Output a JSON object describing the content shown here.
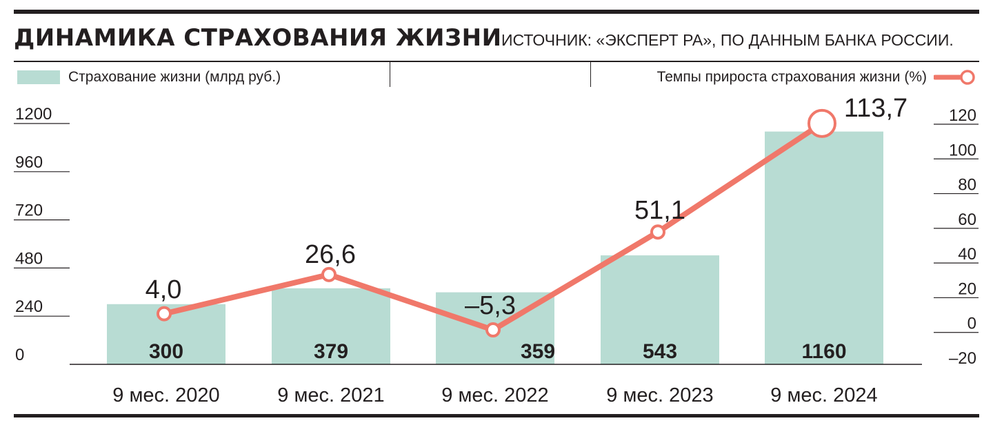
{
  "title": "ДИНАМИКА СТРАХОВАНИЯ ЖИЗНИ",
  "source": "ИСТОЧНИК: «ЭКСПЕРТ РА», ПО ДАННЫМ БАНКА РОССИИ.",
  "legend": {
    "bars_label": "Страхование жизни (млрд руб.)",
    "line_label": "Темпы прироста страхования жизни (%)"
  },
  "colors": {
    "bar": "#b8dcd3",
    "line": "#f0786a",
    "text": "#231f20"
  },
  "chart_data": {
    "type": "bar",
    "categories": [
      "9 мес. 2020",
      "9 мес. 2021",
      "9 мес. 2022",
      "9 мес. 2023",
      "9 мес. 2024"
    ],
    "series": [
      {
        "name": "Страхование жизни (млрд руб.)",
        "type": "bar",
        "axis": "left",
        "values": [
          300,
          379,
          359,
          543,
          1160
        ],
        "labels": [
          "300",
          "379",
          "359",
          "543",
          "1160"
        ]
      },
      {
        "name": "Темпы прироста страхования жизни (%)",
        "type": "line",
        "axis": "right",
        "values": [
          4.0,
          26.6,
          -5.3,
          51.1,
          113.7
        ],
        "labels": [
          "4,0",
          "26,6",
          "–5,3",
          "51,1",
          "113,7"
        ]
      }
    ],
    "left_axis": {
      "ylim": [
        0,
        1200
      ],
      "ticks": [
        "0",
        "240",
        "480",
        "720",
        "960",
        "1200"
      ]
    },
    "right_axis": {
      "ylim": [
        -20,
        120
      ],
      "ticks": [
        "–20",
        "0",
        "20",
        "40",
        "60",
        "80",
        "100",
        "120"
      ]
    },
    "legend_position": "top"
  }
}
